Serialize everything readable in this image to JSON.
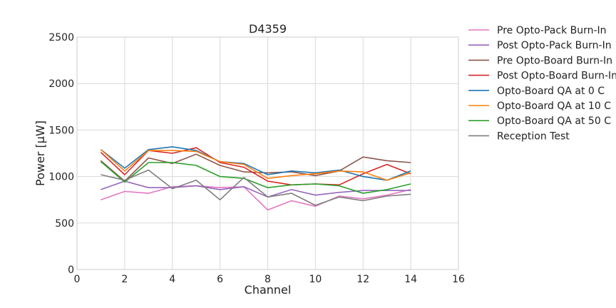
{
  "chart_data": {
    "type": "line",
    "title": "D4359",
    "xlabel": "Channel",
    "ylabel": "Power [μW]",
    "xlim": [
      0,
      16
    ],
    "ylim": [
      0,
      2500
    ],
    "xticks": [
      0,
      2,
      4,
      6,
      8,
      10,
      12,
      14,
      16
    ],
    "yticks": [
      0,
      500,
      1000,
      1500,
      2000,
      2500
    ],
    "grid": true,
    "legend_position": "outside-right",
    "x": [
      1,
      2,
      3,
      4,
      5,
      6,
      7,
      8,
      9,
      10,
      11,
      12,
      13,
      14
    ],
    "series": [
      {
        "name": "Pre Opto-Pack Burn-In",
        "color": "#e377c2",
        "values": [
          750,
          840,
          820,
          890,
          900,
          880,
          890,
          640,
          740,
          680,
          790,
          760,
          800,
          860
        ]
      },
      {
        "name": "Post Opto-Pack Burn-In",
        "color": "#9467bd",
        "values": [
          860,
          950,
          880,
          880,
          900,
          860,
          890,
          780,
          860,
          800,
          830,
          850,
          850,
          850
        ]
      },
      {
        "name": "Pre Opto-Board Burn-In",
        "color": "#8c564b",
        "values": [
          1170,
          950,
          1200,
          1140,
          1240,
          1120,
          1050,
          1040,
          1050,
          1010,
          1060,
          1210,
          1170,
          1150
        ]
      },
      {
        "name": "Post Opto-Board Burn-In",
        "color": "#d62728",
        "values": [
          1260,
          1020,
          1280,
          1250,
          1310,
          1150,
          1100,
          950,
          910,
          920,
          910,
          1030,
          1130,
          1030
        ]
      },
      {
        "name": "Opto-Board QA at 0 C",
        "color": "#1f77b4",
        "values": [
          1290,
          1090,
          1290,
          1320,
          1280,
          1160,
          1140,
          1020,
          1060,
          1040,
          1070,
          1000,
          960,
          1060
        ]
      },
      {
        "name": "Opto-Board QA at 10 C",
        "color": "#ff7f0e",
        "values": [
          1290,
          1060,
          1280,
          1280,
          1270,
          1160,
          1130,
          980,
          1010,
          1030,
          1060,
          1050,
          960,
          1040
        ]
      },
      {
        "name": "Opto-Board QA at 50 C",
        "color": "#2ca02c",
        "values": [
          1160,
          940,
          1150,
          1150,
          1120,
          1000,
          980,
          880,
          910,
          920,
          900,
          820,
          860,
          920
        ]
      },
      {
        "name": "Reception Test",
        "color": "#7f7f7f",
        "values": [
          1020,
          960,
          1070,
          870,
          960,
          750,
          990,
          780,
          820,
          690,
          780,
          740,
          790,
          810
        ]
      }
    ]
  }
}
